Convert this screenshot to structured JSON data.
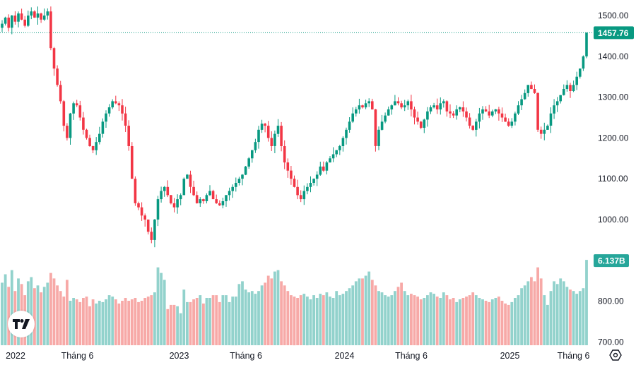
{
  "chart_data": {
    "type": "candlestick",
    "interval": "weekly",
    "start_year": 2022,
    "colors": {
      "up": "#089981",
      "down": "#f23645",
      "volume_up": "#92d2cc",
      "volume_down": "#f7a9a7",
      "last_tag": "#089981"
    },
    "closes": [
      1480,
      1495,
      1470,
      1500,
      1485,
      1505,
      1490,
      1475,
      1500,
      1510,
      1495,
      1505,
      1490,
      1500,
      1510,
      1420,
      1370,
      1330,
      1290,
      1230,
      1200,
      1260,
      1285,
      1280,
      1250,
      1220,
      1200,
      1180,
      1170,
      1190,
      1210,
      1240,
      1260,
      1275,
      1290,
      1285,
      1280,
      1260,
      1230,
      1180,
      1100,
      1040,
      1030,
      1010,
      1000,
      970,
      950,
      1000,
      1050,
      1070,
      1080,
      1060,
      1040,
      1030,
      1050,
      1060,
      1100,
      1110,
      1080,
      1060,
      1040,
      1050,
      1045,
      1060,
      1070,
      1050,
      1040,
      1035,
      1045,
      1060,
      1070,
      1080,
      1090,
      1100,
      1110,
      1130,
      1150,
      1170,
      1190,
      1220,
      1235,
      1230,
      1200,
      1180,
      1210,
      1230,
      1180,
      1140,
      1120,
      1100,
      1080,
      1060,
      1050,
      1070,
      1080,
      1090,
      1100,
      1110,
      1130,
      1120,
      1140,
      1150,
      1160,
      1170,
      1180,
      1200,
      1220,
      1240,
      1260,
      1270,
      1280,
      1275,
      1285,
      1290,
      1270,
      1180,
      1220,
      1240,
      1255,
      1270,
      1280,
      1290,
      1285,
      1275,
      1280,
      1290,
      1270,
      1250,
      1240,
      1225,
      1245,
      1265,
      1275,
      1280,
      1270,
      1285,
      1290,
      1265,
      1260,
      1255,
      1270,
      1275,
      1265,
      1250,
      1230,
      1220,
      1240,
      1260,
      1270,
      1265,
      1255,
      1265,
      1270,
      1260,
      1250,
      1240,
      1230,
      1240,
      1260,
      1280,
      1295,
      1310,
      1330,
      1320,
      1310,
      1220,
      1210,
      1220,
      1230,
      1260,
      1280,
      1290,
      1305,
      1320,
      1330,
      1315,
      1330,
      1350,
      1370,
      1400,
      1457.76
    ],
    "volumes_billion": [
      4.5,
      5.1,
      4.2,
      5.4,
      3.9,
      4.8,
      4.4,
      3.6,
      4.6,
      4.9,
      4.1,
      4.3,
      3.8,
      4.2,
      4.5,
      5.2,
      4.8,
      4.3,
      3.9,
      3.5,
      4.7,
      3.2,
      3.4,
      3.3,
      3.1,
      3.4,
      3.5,
      2.8,
      3.3,
      3.0,
      3.2,
      3.1,
      3.3,
      3.6,
      3.5,
      3.3,
      3.0,
      3.2,
      3.4,
      3.2,
      3.3,
      3.4,
      3.1,
      3.2,
      3.4,
      3.5,
      3.6,
      3.8,
      5.6,
      5.2,
      4.7,
      2.6,
      2.9,
      2.9,
      2.8,
      2.3,
      4.0,
      3.1,
      3.1,
      3.3,
      3.4,
      3.6,
      3.0,
      3.4,
      3.4,
      3.6,
      3.6,
      3.1,
      3.6,
      3.6,
      3.1,
      3.5,
      3.5,
      4.4,
      4.6,
      4.0,
      3.8,
      3.9,
      3.7,
      3.9,
      4.3,
      4.5,
      5.0,
      4.8,
      5.3,
      5.4,
      4.6,
      4.3,
      3.9,
      3.6,
      3.5,
      3.4,
      3.6,
      3.7,
      3.5,
      3.3,
      3.6,
      3.4,
      3.7,
      3.6,
      3.8,
      3.5,
      3.4,
      3.9,
      3.6,
      3.7,
      3.9,
      4.1,
      4.3,
      4.6,
      4.8,
      4.8,
      5.0,
      5.3,
      4.7,
      4.3,
      3.9,
      3.8,
      3.6,
      3.5,
      3.6,
      3.9,
      4.2,
      4.5,
      3.9,
      3.6,
      3.7,
      3.6,
      3.5,
      3.3,
      3.4,
      3.6,
      3.8,
      3.7,
      3.5,
      3.4,
      3.8,
      3.6,
      3.3,
      3.4,
      3.1,
      3.3,
      3.4,
      3.5,
      3.6,
      3.8,
      3.6,
      3.4,
      3.3,
      3.2,
      3.1,
      3.3,
      3.4,
      3.5,
      3.2,
      3.0,
      2.9,
      3.1,
      3.4,
      3.6,
      4.1,
      4.3,
      4.6,
      4.9,
      4.6,
      5.6,
      4.8,
      3.6,
      2.9,
      3.9,
      4.6,
      4.4,
      4.8,
      4.6,
      4.2,
      4.0,
      3.9,
      3.7,
      3.9,
      4.1,
      6.137
    ],
    "y_axis": {
      "ticks": [
        "1500.00",
        "1400.00",
        "1300.00",
        "1200.00",
        "1100.00",
        "1000.00",
        "800.00",
        "700.00"
      ],
      "tick_values": [
        1500,
        1400,
        1300,
        1200,
        1100,
        1000,
        800,
        700
      ],
      "range": [
        690,
        1540
      ]
    },
    "x_axis": {
      "ticks": [
        {
          "label": "2022",
          "week": 0
        },
        {
          "label": "Tháng 6",
          "week": 21
        },
        {
          "label": "2023",
          "week": 53
        },
        {
          "label": "Tháng 6",
          "week": 74
        },
        {
          "label": "2024",
          "week": 105
        },
        {
          "label": "Tháng 6",
          "week": 126
        },
        {
          "label": "2025",
          "week": 157
        },
        {
          "label": "Tháng 6",
          "week": 177
        }
      ]
    },
    "last_price": "1457.76",
    "last_volume": "6.137B"
  }
}
